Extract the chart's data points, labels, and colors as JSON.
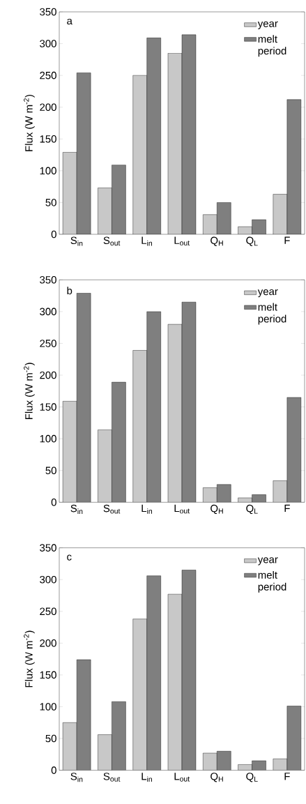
{
  "chart_data": [
    {
      "type": "bar",
      "title": "a",
      "ylabel": "Flux (W m$^{-2}$)",
      "categories": [
        "S$_{in}$",
        "S$_{out}$",
        "L$_{in}$",
        "L$_{out}$",
        "Q$_{H}$",
        "Q$_{L}$",
        "F"
      ],
      "ylim": [
        0,
        350
      ],
      "yticks": [
        0,
        50,
        100,
        150,
        200,
        250,
        300,
        350
      ],
      "legend": "top right",
      "series": [
        {
          "name": "year",
          "color": "#c8c8c8",
          "values": [
            129,
            73,
            250,
            285,
            31,
            12,
            63
          ]
        },
        {
          "name": "melt period",
          "color": "#7f7f7f",
          "values": [
            254,
            109,
            309,
            314,
            50,
            23,
            212
          ]
        }
      ]
    },
    {
      "type": "bar",
      "title": "b",
      "ylabel": "Flux (W m$^{-2}$)",
      "categories": [
        "S$_{in}$",
        "S$_{out}$",
        "L$_{in}$",
        "L$_{out}$",
        "Q$_{H}$",
        "Q$_{L}$",
        "F"
      ],
      "ylim": [
        0,
        350
      ],
      "yticks": [
        0,
        50,
        100,
        150,
        200,
        250,
        300,
        350
      ],
      "legend": "top right",
      "series": [
        {
          "name": "year",
          "color": "#c8c8c8",
          "values": [
            159,
            114,
            239,
            280,
            23,
            7,
            34
          ]
        },
        {
          "name": "melt period",
          "color": "#7f7f7f",
          "values": [
            329,
            189,
            300,
            315,
            28,
            12,
            165
          ]
        }
      ]
    },
    {
      "type": "bar",
      "title": "c",
      "ylabel": "Flux (W m$^{-2}$)",
      "categories": [
        "S$_{in}$",
        "S$_{out}$",
        "L$_{in}$",
        "L$_{out}$",
        "Q$_{H}$",
        "Q$_{L}$",
        "F"
      ],
      "ylim": [
        0,
        350
      ],
      "yticks": [
        0,
        50,
        100,
        150,
        200,
        250,
        300,
        350
      ],
      "legend": "top right",
      "series": [
        {
          "name": "year",
          "color": "#c8c8c8",
          "values": [
            75,
            56,
            238,
            277,
            27,
            9,
            18
          ]
        },
        {
          "name": "melt period",
          "color": "#7f7f7f",
          "values": [
            174,
            108,
            306,
            315,
            30,
            15,
            101
          ]
        }
      ]
    }
  ]
}
